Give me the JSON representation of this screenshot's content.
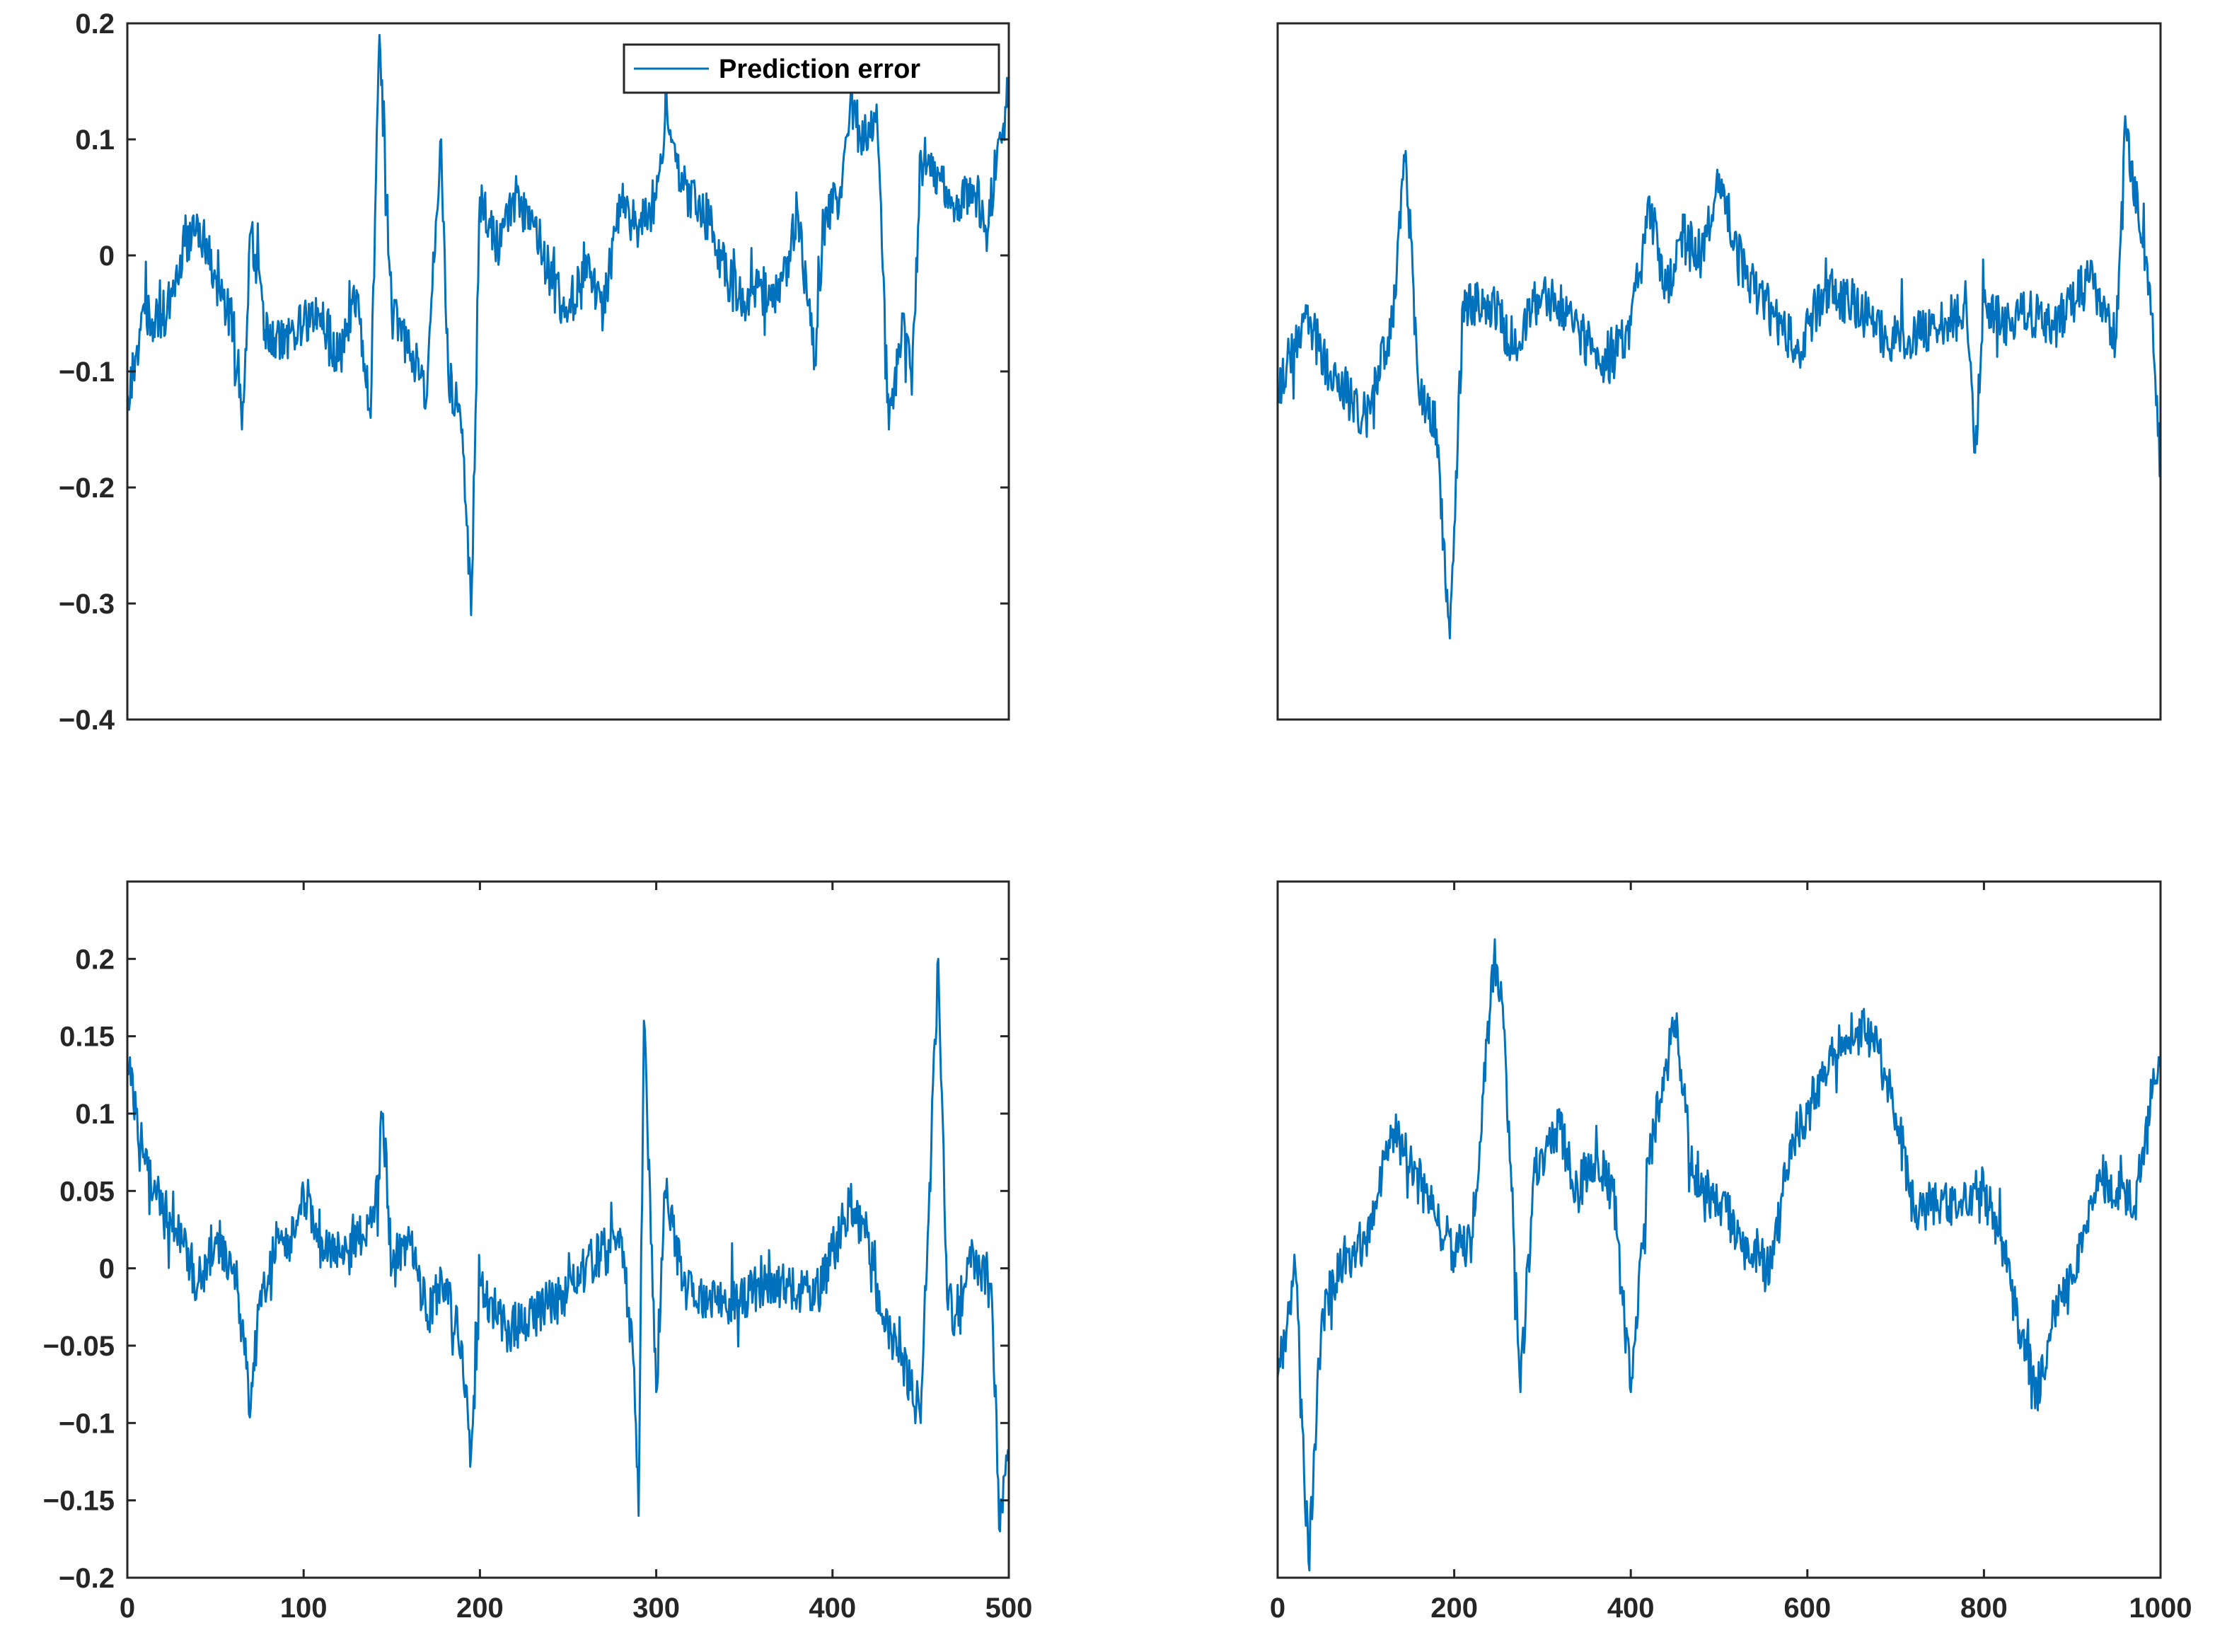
{
  "chart_data": [
    {
      "id": "top-left",
      "type": "line",
      "xlim": [
        0,
        500
      ],
      "ylim": [
        -0.4,
        0.2
      ],
      "xticks": [],
      "yticks": [
        -0.4,
        -0.3,
        -0.2,
        -0.1,
        0,
        0.1,
        0.2
      ],
      "ytick_labels": [
        "−0.4",
        "−0.3",
        "−0.2",
        "−0.1",
        "0",
        "0.1",
        "0.2"
      ],
      "legend": {
        "entries": [
          "Prediction error"
        ],
        "position": "top-right"
      },
      "series": [
        {
          "name": "Prediction error",
          "color": "#0072BD",
          "x": [
            0,
            10,
            20,
            30,
            40,
            50,
            60,
            65,
            70,
            80,
            90,
            100,
            110,
            120,
            130,
            138,
            143,
            150,
            160,
            170,
            178,
            182,
            190,
            195,
            200,
            210,
            220,
            230,
            240,
            250,
            260,
            270,
            280,
            290,
            300,
            306,
            315,
            330,
            340,
            350,
            360,
            370,
            380,
            390,
            396,
            405,
            410,
            418,
            425,
            432,
            440,
            445,
            450,
            460,
            470,
            480,
            488,
            494,
            500
          ],
          "y": [
            -0.12,
            -0.05,
            -0.06,
            0.0,
            0.03,
            -0.02,
            -0.06,
            -0.15,
            0.02,
            -0.08,
            -0.07,
            -0.06,
            -0.05,
            -0.09,
            -0.03,
            -0.14,
            0.19,
            -0.05,
            -0.08,
            -0.12,
            0.1,
            -0.1,
            -0.15,
            -0.31,
            0.05,
            0.01,
            0.05,
            0.03,
            -0.02,
            -0.05,
            0.0,
            -0.05,
            0.05,
            0.02,
            0.05,
            0.13,
            0.06,
            0.03,
            -0.02,
            -0.04,
            -0.03,
            -0.04,
            0.04,
            -0.09,
            0.04,
            0.05,
            0.13,
            0.1,
            0.13,
            -0.15,
            -0.05,
            -0.12,
            0.09,
            0.07,
            0.04,
            0.06,
            0.02,
            0.1,
            0.14
          ]
        }
      ]
    },
    {
      "id": "top-right",
      "type": "line",
      "xlim": [
        0,
        1000
      ],
      "ylim": [
        -0.4,
        0.2
      ],
      "xticks": [],
      "yticks": [],
      "series": [
        {
          "color": "#0072BD",
          "x": [
            0,
            30,
            60,
            100,
            130,
            145,
            160,
            180,
            195,
            210,
            240,
            270,
            300,
            330,
            370,
            400,
            420,
            440,
            460,
            480,
            500,
            530,
            560,
            590,
            620,
            650,
            690,
            720,
            750,
            780,
            790,
            800,
            820,
            850,
            880,
            920,
            950,
            960,
            990,
            1000
          ],
          "y": [
            -0.12,
            -0.05,
            -0.1,
            -0.14,
            -0.06,
            0.09,
            -0.12,
            -0.15,
            -0.33,
            -0.04,
            -0.04,
            -0.08,
            -0.03,
            -0.05,
            -0.1,
            -0.06,
            0.05,
            -0.03,
            0.02,
            0.0,
            0.07,
            -0.02,
            -0.05,
            -0.08,
            -0.03,
            -0.04,
            -0.07,
            -0.07,
            -0.06,
            -0.04,
            -0.17,
            -0.04,
            -0.06,
            -0.05,
            -0.06,
            -0.02,
            -0.07,
            0.12,
            -0.05,
            -0.19
          ]
        }
      ]
    },
    {
      "id": "bottom-left",
      "type": "line",
      "xlim": [
        0,
        500
      ],
      "ylim": [
        -0.2,
        0.25
      ],
      "xticks": [
        0,
        100,
        200,
        300,
        400,
        500
      ],
      "xtick_labels": [
        "0",
        "100",
        "200",
        "300",
        "400",
        "500"
      ],
      "yticks": [
        -0.2,
        -0.15,
        -0.1,
        -0.05,
        0,
        0.05,
        0.1,
        0.15,
        0.2
      ],
      "ytick_labels": [
        "−0.2",
        "−0.15",
        "−0.1",
        "−0.05",
        "0",
        "0.05",
        "0.1",
        "0.15",
        "0.2"
      ],
      "series": [
        {
          "color": "#0072BD",
          "x": [
            0,
            5,
            15,
            25,
            40,
            50,
            60,
            65,
            70,
            75,
            85,
            95,
            100,
            110,
            125,
            140,
            145,
            150,
            160,
            170,
            180,
            190,
            195,
            200,
            215,
            230,
            245,
            260,
            280,
            287,
            290,
            293,
            300,
            305,
            315,
            330,
            345,
            360,
            375,
            390,
            410,
            420,
            430,
            440,
            450,
            460,
            465,
            470,
            480,
            490,
            495,
            500
          ],
          "y": [
            0.13,
            0.1,
            0.05,
            0.03,
            -0.01,
            0.02,
            0.0,
            -0.04,
            -0.09,
            -0.02,
            0.02,
            0.02,
            0.05,
            0.02,
            0.01,
            0.03,
            0.1,
            0.0,
            0.02,
            -0.03,
            -0.01,
            -0.05,
            -0.12,
            -0.01,
            -0.04,
            -0.03,
            -0.02,
            0.0,
            0.02,
            -0.06,
            -0.16,
            0.16,
            -0.08,
            0.05,
            -0.01,
            -0.02,
            -0.02,
            -0.01,
            -0.01,
            -0.02,
            0.04,
            0.02,
            -0.04,
            -0.06,
            -0.1,
            0.2,
            -0.02,
            -0.03,
            0.01,
            -0.01,
            -0.17,
            -0.12
          ]
        }
      ]
    },
    {
      "id": "bottom-right",
      "type": "line",
      "xlim": [
        0,
        1000
      ],
      "ylim": [
        -0.2,
        0.25
      ],
      "xticks": [
        0,
        200,
        400,
        600,
        800,
        1000
      ],
      "xtick_labels": [
        "0",
        "200",
        "400",
        "600",
        "800",
        "1000"
      ],
      "yticks": [],
      "series": [
        {
          "color": "#0072BD",
          "x": [
            0,
            20,
            35,
            50,
            70,
            100,
            130,
            150,
            180,
            200,
            220,
            245,
            255,
            265,
            275,
            290,
            320,
            340,
            360,
            380,
            400,
            420,
            450,
            470,
            500,
            530,
            560,
            580,
            600,
            620,
            640,
            660,
            680,
            700,
            720,
            760,
            800,
            820,
            840,
            860,
            880,
            900,
            930,
            950,
            970,
            990,
            1000
          ],
          "y": [
            -0.07,
            0.0,
            -0.19,
            -0.03,
            0.0,
            0.02,
            0.09,
            0.07,
            0.03,
            0.01,
            0.02,
            0.2,
            0.17,
            0.05,
            -0.08,
            0.06,
            0.09,
            0.05,
            0.07,
            0.05,
            -0.08,
            0.07,
            0.16,
            0.06,
            0.04,
            0.02,
            0.0,
            0.08,
            0.1,
            0.13,
            0.14,
            0.16,
            0.14,
            0.1,
            0.04,
            0.04,
            0.05,
            0.02,
            -0.04,
            -0.08,
            -0.03,
            -0.01,
            0.06,
            0.05,
            0.04,
            0.11,
            0.13
          ]
        }
      ]
    }
  ]
}
